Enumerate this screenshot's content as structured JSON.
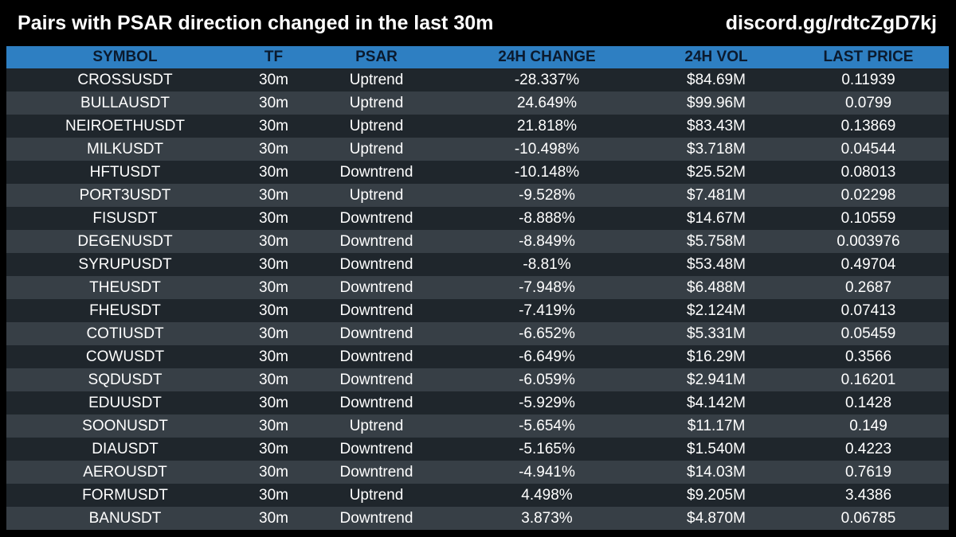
{
  "header": {
    "title": "Pairs with PSAR direction changed in the last 30m",
    "link": "discord.gg/rdtcZgD7kj"
  },
  "table": {
    "columns": [
      "SYMBOL",
      "TF",
      "PSAR",
      "24H CHANGE",
      "24H VOL",
      "LAST PRICE"
    ],
    "rows": [
      [
        "CROSSUSDT",
        "30m",
        "Uptrend",
        "-28.337%",
        "$84.69M",
        "0.11939"
      ],
      [
        "BULLAUSDT",
        "30m",
        "Uptrend",
        "24.649%",
        "$99.96M",
        "0.0799"
      ],
      [
        "NEIROETHUSDT",
        "30m",
        "Uptrend",
        "21.818%",
        "$83.43M",
        "0.13869"
      ],
      [
        "MILKUSDT",
        "30m",
        "Uptrend",
        "-10.498%",
        "$3.718M",
        "0.04544"
      ],
      [
        "HFTUSDT",
        "30m",
        "Downtrend",
        "-10.148%",
        "$25.52M",
        "0.08013"
      ],
      [
        "PORT3USDT",
        "30m",
        "Uptrend",
        "-9.528%",
        "$7.481M",
        "0.02298"
      ],
      [
        "FISUSDT",
        "30m",
        "Downtrend",
        "-8.888%",
        "$14.67M",
        "0.10559"
      ],
      [
        "DEGENUSDT",
        "30m",
        "Downtrend",
        "-8.849%",
        "$5.758M",
        "0.003976"
      ],
      [
        "SYRUPUSDT",
        "30m",
        "Downtrend",
        "-8.81%",
        "$53.48M",
        "0.49704"
      ],
      [
        "THEUSDT",
        "30m",
        "Downtrend",
        "-7.948%",
        "$6.488M",
        "0.2687"
      ],
      [
        "FHEUSDT",
        "30m",
        "Downtrend",
        "-7.419%",
        "$2.124M",
        "0.07413"
      ],
      [
        "COTIUSDT",
        "30m",
        "Downtrend",
        "-6.652%",
        "$5.331M",
        "0.05459"
      ],
      [
        "COWUSDT",
        "30m",
        "Downtrend",
        "-6.649%",
        "$16.29M",
        "0.3566"
      ],
      [
        "SQDUSDT",
        "30m",
        "Downtrend",
        "-6.059%",
        "$2.941M",
        "0.16201"
      ],
      [
        "EDUUSDT",
        "30m",
        "Downtrend",
        "-5.929%",
        "$4.142M",
        "0.1428"
      ],
      [
        "SOONUSDT",
        "30m",
        "Uptrend",
        "-5.654%",
        "$11.17M",
        "0.149"
      ],
      [
        "DIAUSDT",
        "30m",
        "Downtrend",
        "-5.165%",
        "$1.540M",
        "0.4223"
      ],
      [
        "AEROUSDT",
        "30m",
        "Downtrend",
        "-4.941%",
        "$14.03M",
        "0.7619"
      ],
      [
        "FORMUSDT",
        "30m",
        "Uptrend",
        "4.498%",
        "$9.205M",
        "3.4386"
      ],
      [
        "BANUSDT",
        "30m",
        "Downtrend",
        "3.873%",
        "$4.870M",
        "0.06785"
      ]
    ]
  },
  "colors": {
    "background": "#000000",
    "header_row": "#2e7fc2",
    "header_text": "#0b1a2e",
    "row_dark": "#1f262c",
    "row_light": "#373f46",
    "text": "#ffffff"
  }
}
